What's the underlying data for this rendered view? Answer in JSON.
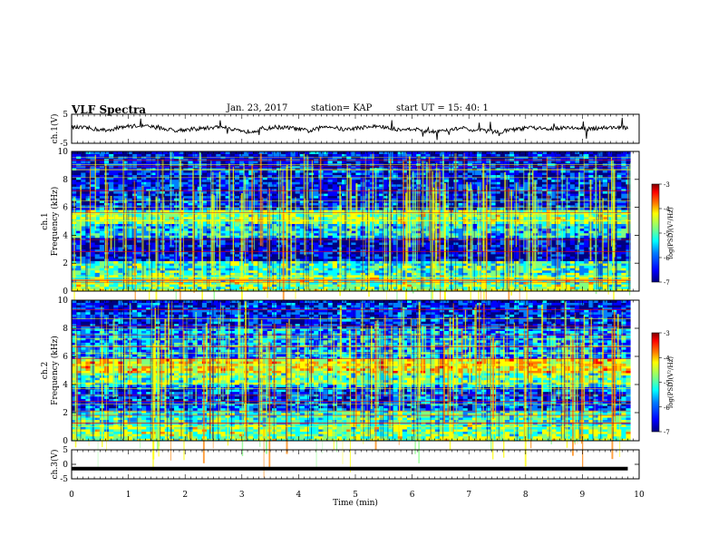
{
  "header": {
    "title": "VLF Spectra",
    "date": "Jan. 23, 2017",
    "station": "station= KAP",
    "start": "start UT =  15: 40: 1"
  },
  "colors": {
    "colormap": [
      "#000080",
      "#0000ff",
      "#0080ff",
      "#00ffff",
      "#80ff80",
      "#ffff00",
      "#ff8000",
      "#ff0000",
      "#800000"
    ]
  },
  "chart_data": [
    {
      "type": "line",
      "name": "ch1-waveform",
      "ylabel": "ch.1(V)",
      "ylim": [
        -5,
        5
      ],
      "yticks": [
        5,
        -5
      ],
      "x": [
        0,
        0.3,
        0.6,
        0.9,
        1.2,
        1.5,
        1.8,
        2.1,
        2.4,
        2.7,
        3.0,
        3.3,
        3.6,
        3.9,
        4.2,
        4.5,
        4.8,
        5.1,
        5.4,
        5.7,
        6.0,
        6.3,
        6.6,
        6.9,
        7.2,
        7.5,
        7.8,
        8.1,
        8.4,
        8.7,
        9.0,
        9.3,
        9.6,
        9.8
      ],
      "y": [
        0.5,
        0.2,
        -0.6,
        0.7,
        1.1,
        0.4,
        -0.5,
        -0.2,
        0.3,
        0.8,
        -1.2,
        -0.4,
        0.6,
        0.2,
        -0.8,
        1.0,
        -0.3,
        0.4,
        0.9,
        -0.2,
        0.1,
        -1.0,
        -0.4,
        0.2,
        -0.6,
        -1.1,
        -0.3,
        0.4,
        -0.2,
        0.6,
        -0.1,
        0.3,
        0.5,
        0.2
      ]
    },
    {
      "type": "heatmap",
      "name": "ch1-spectrogram",
      "ylabel_top": "ch.1",
      "ylabel": "Frequency (kHz)",
      "ylim": [
        0,
        10
      ],
      "yticks": [
        0,
        2,
        4,
        6,
        8,
        10
      ],
      "colorbar": {
        "label": "log(PSD)(V²/Hz)",
        "range": [
          -7,
          -3
        ],
        "ticks": [
          -3,
          -4,
          -5,
          -6,
          -7
        ]
      }
    },
    {
      "type": "heatmap",
      "name": "ch2-spectrogram",
      "ylabel_top": "ch.2",
      "ylabel": "Frequency (kHz)",
      "ylim": [
        0,
        10
      ],
      "yticks": [
        0,
        2,
        4,
        6,
        8,
        10
      ],
      "colorbar": {
        "label": "log(PSD)(V²/Hz)",
        "range": [
          -7,
          -3
        ],
        "ticks": [
          -3,
          -4,
          -5,
          -6,
          -7
        ]
      }
    },
    {
      "type": "line",
      "name": "ch3-waveform",
      "ylabel": "ch.3(V)",
      "ylim": [
        -5,
        5
      ],
      "yticks": [
        5,
        0,
        -5
      ],
      "x": [
        0,
        9.8
      ],
      "y": [
        -1.5,
        -1.5
      ]
    }
  ],
  "xaxis": {
    "label": "Time (min)",
    "range": [
      0,
      10
    ],
    "ticks": [
      0,
      1,
      2,
      3,
      4,
      5,
      6,
      7,
      8,
      9,
      10
    ]
  }
}
